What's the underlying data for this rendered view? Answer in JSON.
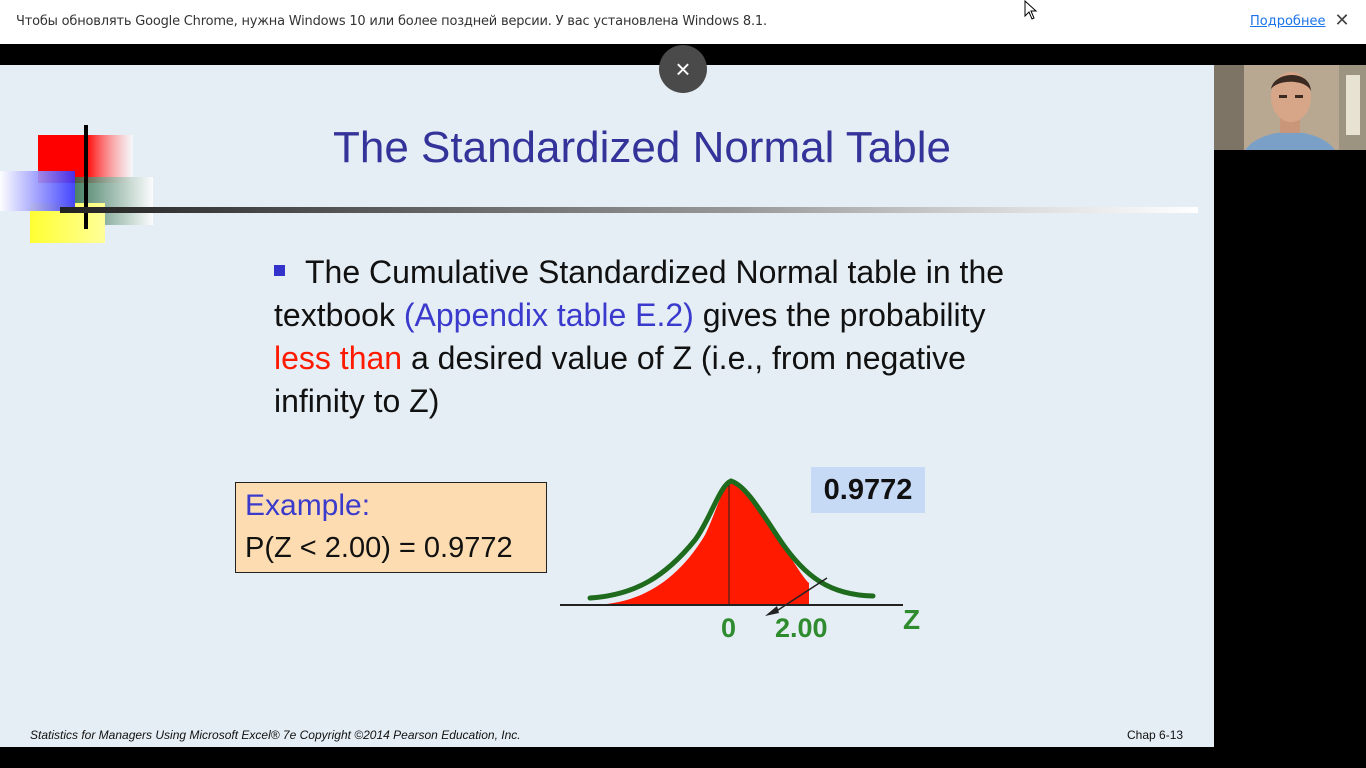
{
  "infobar": {
    "message": "Чтобы обновлять Google Chrome, нужна Windows 10 или более поздней версии. У вас установлена Windows 8.1.",
    "more_link": "Подробнее",
    "close_glyph": "✕"
  },
  "overlay": {
    "close_glyph": "×"
  },
  "slide": {
    "title": "The Standardized Normal Table",
    "bullet": {
      "part1": "The Cumulative Standardized Normal table in the textbook ",
      "appendix": "(Appendix table E.2)",
      "part2": " gives the probability ",
      "less_than": "less than",
      "part3": " a desired value of Z (i.e., from negative infinity to Z)"
    },
    "example": {
      "label": "Example:",
      "equation": "P(Z < 2.00) = 0.9772"
    },
    "figure": {
      "probability_label": "0.9772",
      "tick_zero": "0",
      "tick_two": "2.00",
      "axis_label": "Z"
    },
    "footer_left": "Statistics for Managers Using Microsoft Excel® 7e Copyright ©2014 Pearson Education, Inc.",
    "footer_right": "Chap 6-13"
  },
  "colors": {
    "title": "#333399",
    "accent_blue": "#3a3acc",
    "accent_red": "#ff1a00",
    "curve_green": "#1e6b1e",
    "tick_green": "#2e8b2e",
    "slide_bg": "#e5eef5",
    "example_bg": "#fcdcb0",
    "label_bg": "#c6d9f5"
  }
}
